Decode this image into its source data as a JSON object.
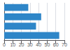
{
  "chart_data": {
    "type": "bar",
    "orientation": "horizontal",
    "categories": [
      null,
      null,
      null,
      null
    ],
    "values": [
      64,
      37,
      43,
      28
    ],
    "color": "#2e86c8",
    "xlim": [
      0,
      70
    ],
    "xticks": [
      0,
      10,
      20,
      30,
      40,
      50,
      60,
      70
    ],
    "grid": true,
    "tick_labels": "x"
  }
}
